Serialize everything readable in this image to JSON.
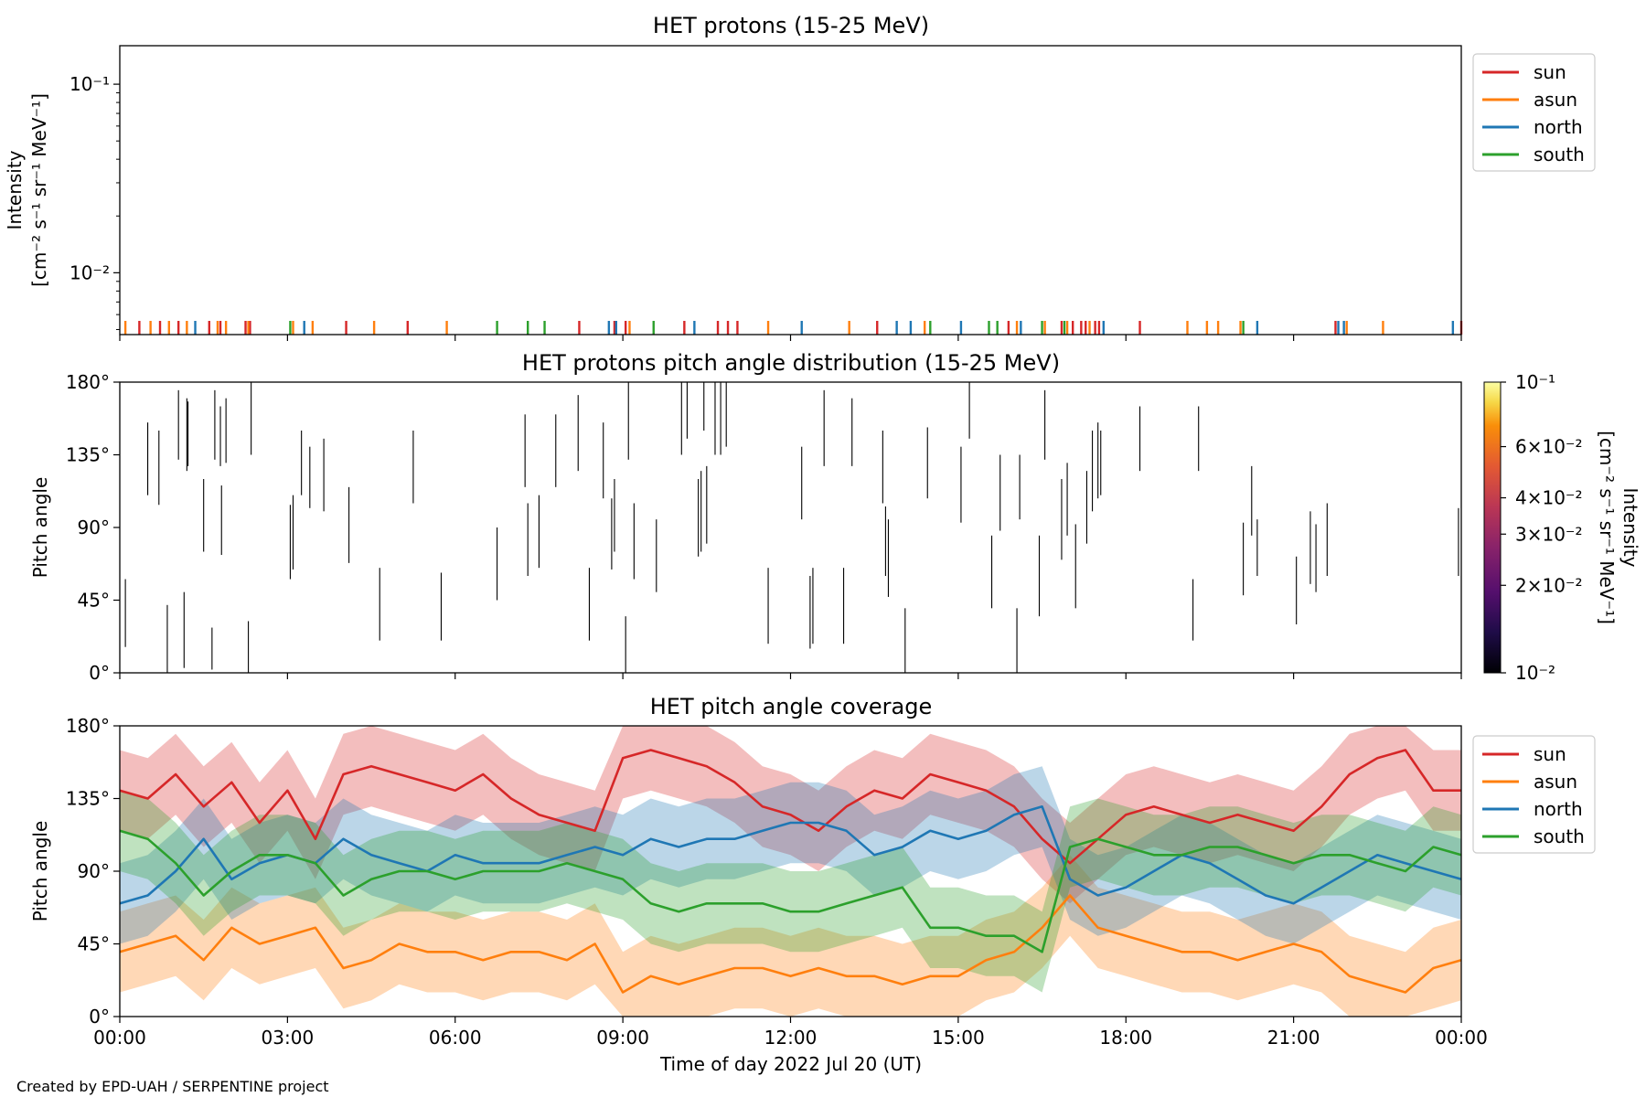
{
  "footer": {
    "credit": "Created by EPD-UAH / SERPENTINE project"
  },
  "colors": {
    "sun": "#d62728",
    "asun": "#ff7f0e",
    "north": "#1f77b4",
    "south": "#2ca02c"
  },
  "x_axis": {
    "label": "Time of day 2022 Jul 20 (UT)",
    "range_hours": [
      0,
      24
    ],
    "ticks": [
      {
        "h": 0,
        "label": "00:00"
      },
      {
        "h": 3,
        "label": "03:00"
      },
      {
        "h": 6,
        "label": "06:00"
      },
      {
        "h": 9,
        "label": "09:00"
      },
      {
        "h": 12,
        "label": "12:00"
      },
      {
        "h": 15,
        "label": "15:00"
      },
      {
        "h": 18,
        "label": "18:00"
      },
      {
        "h": 21,
        "label": "21:00"
      },
      {
        "h": 24,
        "label": "00:00"
      }
    ]
  },
  "chart_data": [
    {
      "type": "line",
      "title": "HET protons (15-25 MeV)",
      "ylabel_line1": "Intensity",
      "ylabel_line2": "[cm⁻² s⁻¹ sr⁻¹ MeV⁻¹]",
      "yscale": "log",
      "ylim": [
        0.0047,
        0.16
      ],
      "y_ticks": [
        {
          "value": 0.1,
          "label": "10⁻¹"
        },
        {
          "value": 0.01,
          "label": "10⁻²"
        }
      ],
      "legend_position": "outside right, top",
      "series": [
        {
          "name": "sun",
          "color": "#d62728",
          "spike_hours": [
            0.35,
            0.72,
            1.05,
            1.6,
            1.8,
            2.25,
            2.33,
            4.05,
            5.15,
            8.22,
            8.85,
            9.05,
            10.1,
            10.7,
            10.88,
            11.05,
            13.55,
            15.9,
            16.85,
            17.05,
            17.2,
            17.28,
            17.45,
            17.52,
            18.25,
            21.75,
            24.0
          ]
        },
        {
          "name": "asun",
          "color": "#ff7f0e",
          "spike_hours": [
            0.1,
            0.55,
            0.88,
            1.2,
            1.75,
            1.9,
            2.3,
            3.1,
            3.45,
            4.55,
            5.85,
            9.12,
            11.6,
            13.05,
            14.4,
            16.05,
            16.55,
            16.95,
            17.35,
            19.1,
            19.45,
            19.65,
            20.05,
            21.95,
            22.6
          ]
        },
        {
          "name": "north",
          "color": "#1f77b4",
          "spike_hours": [
            1.35,
            3.3,
            8.75,
            8.88,
            10.28,
            12.2,
            13.9,
            14.15,
            15.05,
            16.12,
            17.6,
            20.35,
            21.8,
            21.9,
            23.85
          ]
        },
        {
          "name": "south",
          "color": "#2ca02c",
          "spike_hours": [
            3.05,
            6.75,
            7.3,
            7.6,
            9.55,
            14.5,
            15.55,
            15.7,
            16.5,
            16.9,
            20.1
          ]
        }
      ]
    },
    {
      "type": "heatmap",
      "title": "HET protons pitch angle distribution (15-25 MeV)",
      "ylabel": "Pitch angle",
      "ylim": [
        0,
        180
      ],
      "y_ticks": [
        {
          "value": 0,
          "label": "0°"
        },
        {
          "value": 45,
          "label": "45°"
        },
        {
          "value": 90,
          "label": "90°"
        },
        {
          "value": 135,
          "label": "135°"
        },
        {
          "value": 180,
          "label": "180°"
        }
      ],
      "colorbar": {
        "colormap": "inferno",
        "scale": "log",
        "range": [
          0.01,
          0.1
        ],
        "label_line1": "Intensity",
        "label_line2": "[cm⁻² s⁻¹ sr⁻¹ MeV⁻¹]",
        "ticks": [
          {
            "value": 0.1,
            "label": "10⁻¹"
          },
          {
            "value": 0.06,
            "label": "6×10⁻²"
          },
          {
            "value": 0.04,
            "label": "4×10⁻²"
          },
          {
            "value": 0.03,
            "label": "3×10⁻²"
          },
          {
            "value": 0.02,
            "label": "2×10⁻²"
          },
          {
            "value": 0.01,
            "label": "10⁻²"
          }
        ]
      },
      "segments": [
        [
          0.1,
          16,
          58
        ],
        [
          0.5,
          110,
          155
        ],
        [
          0.7,
          104,
          150
        ],
        [
          0.85,
          0,
          42
        ],
        [
          1.05,
          132,
          175
        ],
        [
          1.15,
          3,
          50
        ],
        [
          1.2,
          125,
          170
        ],
        [
          1.22,
          128,
          168
        ],
        [
          1.5,
          75,
          120
        ],
        [
          1.65,
          2,
          28
        ],
        [
          1.7,
          132,
          175
        ],
        [
          1.8,
          128,
          165
        ],
        [
          1.82,
          73,
          116
        ],
        [
          1.9,
          130,
          170
        ],
        [
          2.3,
          0,
          32
        ],
        [
          2.35,
          135,
          180
        ],
        [
          3.05,
          58,
          104
        ],
        [
          3.1,
          64,
          110
        ],
        [
          3.25,
          110,
          150
        ],
        [
          3.4,
          102,
          140
        ],
        [
          3.65,
          100,
          145
        ],
        [
          4.1,
          68,
          115
        ],
        [
          4.65,
          20,
          65
        ],
        [
          5.25,
          105,
          150
        ],
        [
          5.75,
          20,
          62
        ],
        [
          6.75,
          45,
          90
        ],
        [
          7.25,
          115,
          160
        ],
        [
          7.3,
          60,
          105
        ],
        [
          7.5,
          65,
          110
        ],
        [
          7.8,
          115,
          160
        ],
        [
          8.2,
          125,
          172
        ],
        [
          8.4,
          20,
          65
        ],
        [
          8.65,
          108,
          155
        ],
        [
          8.8,
          64,
          108
        ],
        [
          8.85,
          75,
          120
        ],
        [
          9.05,
          0,
          35
        ],
        [
          9.1,
          132,
          180
        ],
        [
          9.2,
          58,
          105
        ],
        [
          9.6,
          50,
          95
        ],
        [
          10.05,
          135,
          180
        ],
        [
          10.15,
          145,
          180
        ],
        [
          10.35,
          72,
          120
        ],
        [
          10.4,
          75,
          125
        ],
        [
          10.45,
          150,
          180
        ],
        [
          10.5,
          80,
          128
        ],
        [
          10.65,
          135,
          180
        ],
        [
          10.75,
          135,
          180
        ],
        [
          10.85,
          140,
          180
        ],
        [
          11.6,
          18,
          65
        ],
        [
          12.2,
          95,
          140
        ],
        [
          12.35,
          15,
          60
        ],
        [
          12.4,
          18,
          65
        ],
        [
          12.6,
          128,
          175
        ],
        [
          12.95,
          18,
          65
        ],
        [
          13.1,
          128,
          170
        ],
        [
          13.65,
          105,
          150
        ],
        [
          13.7,
          60,
          103
        ],
        [
          13.75,
          47,
          95
        ],
        [
          14.05,
          0,
          40
        ],
        [
          14.45,
          108,
          152
        ],
        [
          15.05,
          93,
          140
        ],
        [
          15.2,
          145,
          180
        ],
        [
          15.6,
          40,
          85
        ],
        [
          15.75,
          88,
          135
        ],
        [
          16.05,
          0,
          40
        ],
        [
          16.1,
          95,
          135
        ],
        [
          16.45,
          35,
          85
        ],
        [
          16.55,
          132,
          175
        ],
        [
          16.85,
          70,
          120
        ],
        [
          16.95,
          85,
          130
        ],
        [
          17.1,
          40,
          92
        ],
        [
          17.3,
          80,
          125
        ],
        [
          17.4,
          100,
          150
        ],
        [
          17.5,
          108,
          155
        ],
        [
          17.55,
          110,
          150
        ],
        [
          18.25,
          125,
          165
        ],
        [
          19.2,
          20,
          58
        ],
        [
          19.3,
          125,
          165
        ],
        [
          20.1,
          48,
          93
        ],
        [
          20.25,
          85,
          128
        ],
        [
          20.35,
          60,
          95
        ],
        [
          21.05,
          30,
          72
        ],
        [
          21.3,
          55,
          100
        ],
        [
          21.4,
          50,
          92
        ],
        [
          21.6,
          60,
          105
        ],
        [
          23.95,
          60,
          102
        ]
      ]
    },
    {
      "type": "area",
      "title": "HET pitch angle coverage",
      "ylabel": "Pitch angle",
      "ylim": [
        0,
        180
      ],
      "y_ticks": [
        {
          "value": 0,
          "label": "0°"
        },
        {
          "value": 45,
          "label": "45°"
        },
        {
          "value": 90,
          "label": "90°"
        },
        {
          "value": 135,
          "label": "135°"
        },
        {
          "value": 180,
          "label": "180°"
        }
      ],
      "legend_position": "outside right, top",
      "band_halfwidth_deg": 25,
      "x": [
        0,
        0.5,
        1,
        1.5,
        2,
        2.5,
        3,
        3.5,
        4,
        4.5,
        5,
        5.5,
        6,
        6.5,
        7,
        7.5,
        8,
        8.5,
        9,
        9.5,
        10,
        10.5,
        11,
        11.5,
        12,
        12.5,
        13,
        13.5,
        14,
        14.5,
        15,
        15.5,
        16,
        16.5,
        17,
        17.5,
        18,
        18.5,
        19,
        19.5,
        20,
        20.5,
        21,
        21.5,
        22,
        22.5,
        23,
        23.5,
        24
      ],
      "series": [
        {
          "name": "sun",
          "color": "#d62728",
          "values": [
            140,
            135,
            150,
            130,
            145,
            120,
            140,
            110,
            150,
            155,
            150,
            145,
            140,
            150,
            135,
            125,
            120,
            115,
            160,
            165,
            160,
            155,
            145,
            130,
            125,
            115,
            130,
            140,
            135,
            150,
            145,
            140,
            130,
            110,
            95,
            110,
            125,
            130,
            125,
            120,
            125,
            120,
            115,
            130,
            150,
            160,
            165,
            140,
            140
          ]
        },
        {
          "name": "asun",
          "color": "#ff7f0e",
          "values": [
            40,
            45,
            50,
            35,
            55,
            45,
            50,
            55,
            30,
            35,
            45,
            40,
            40,
            35,
            40,
            40,
            35,
            45,
            15,
            25,
            20,
            25,
            30,
            30,
            25,
            30,
            25,
            25,
            20,
            25,
            25,
            35,
            40,
            55,
            75,
            55,
            50,
            45,
            40,
            40,
            35,
            40,
            45,
            40,
            25,
            20,
            15,
            30,
            35
          ]
        },
        {
          "name": "north",
          "color": "#1f77b4",
          "values": [
            70,
            75,
            90,
            110,
            85,
            95,
            100,
            95,
            110,
            100,
            95,
            90,
            100,
            95,
            95,
            95,
            100,
            105,
            100,
            110,
            105,
            110,
            110,
            115,
            120,
            120,
            115,
            100,
            105,
            115,
            110,
            115,
            125,
            130,
            85,
            75,
            80,
            90,
            100,
            95,
            85,
            75,
            70,
            80,
            90,
            100,
            95,
            90,
            85
          ]
        },
        {
          "name": "south",
          "color": "#2ca02c",
          "values": [
            115,
            110,
            95,
            75,
            90,
            100,
            100,
            95,
            75,
            85,
            90,
            90,
            85,
            90,
            90,
            90,
            95,
            90,
            85,
            70,
            65,
            70,
            70,
            70,
            65,
            65,
            70,
            75,
            80,
            55,
            55,
            50,
            50,
            40,
            105,
            110,
            105,
            100,
            100,
            105,
            105,
            100,
            95,
            100,
            100,
            95,
            90,
            105,
            100
          ]
        }
      ]
    }
  ]
}
